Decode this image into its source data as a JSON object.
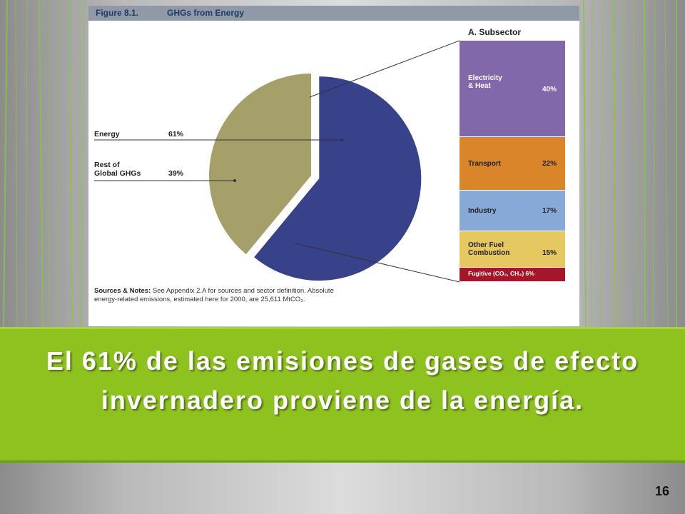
{
  "slide": {
    "title": "El 61% de las emisiones de gases de efecto invernadero proviene de la energía.",
    "number": "16",
    "colors": {
      "band": "#8dc21f",
      "deco_lines": "#8bc34a"
    }
  },
  "figure": {
    "number": "Figure 8.1.",
    "title": "GHGs from Energy",
    "sources_label": "Sources & Notes:",
    "sources_text": "See Appendix 2.A for sources and sector definition. Absolute energy-related emissions, estimated here for 2000, are 25,611 MtCO₂."
  },
  "chart_data": [
    {
      "type": "pie",
      "slices": [
        {
          "label": "Energy",
          "value": 61,
          "value_label": "61%",
          "color": "#37428a"
        },
        {
          "label": "Rest of\nGlobal GHGs",
          "value": 39,
          "value_label": "39%",
          "color": "#a5a06a"
        }
      ]
    },
    {
      "type": "bar",
      "stacked": true,
      "title": "A. Subsector",
      "segments": [
        {
          "label": "Electricity\n& Heat",
          "value": 40,
          "value_label": "40%",
          "color": "#8068aa",
          "text_color": "#ffffff"
        },
        {
          "label": "Transport",
          "value": 22,
          "value_label": "22%",
          "color": "#d98529",
          "text_color": "#222222"
        },
        {
          "label": "Industry",
          "value": 17,
          "value_label": "17%",
          "color": "#87a9d8",
          "text_color": "#222222"
        },
        {
          "label": "Other Fuel\nCombustion",
          "value": 15,
          "value_label": "15%",
          "color": "#e6c860",
          "text_color": "#222222"
        },
        {
          "label": "Fugitive (CO₂, CH₄)",
          "value": 6,
          "value_label": "6%",
          "color": "#a5162a",
          "text_color": "#ffffff"
        }
      ]
    }
  ]
}
